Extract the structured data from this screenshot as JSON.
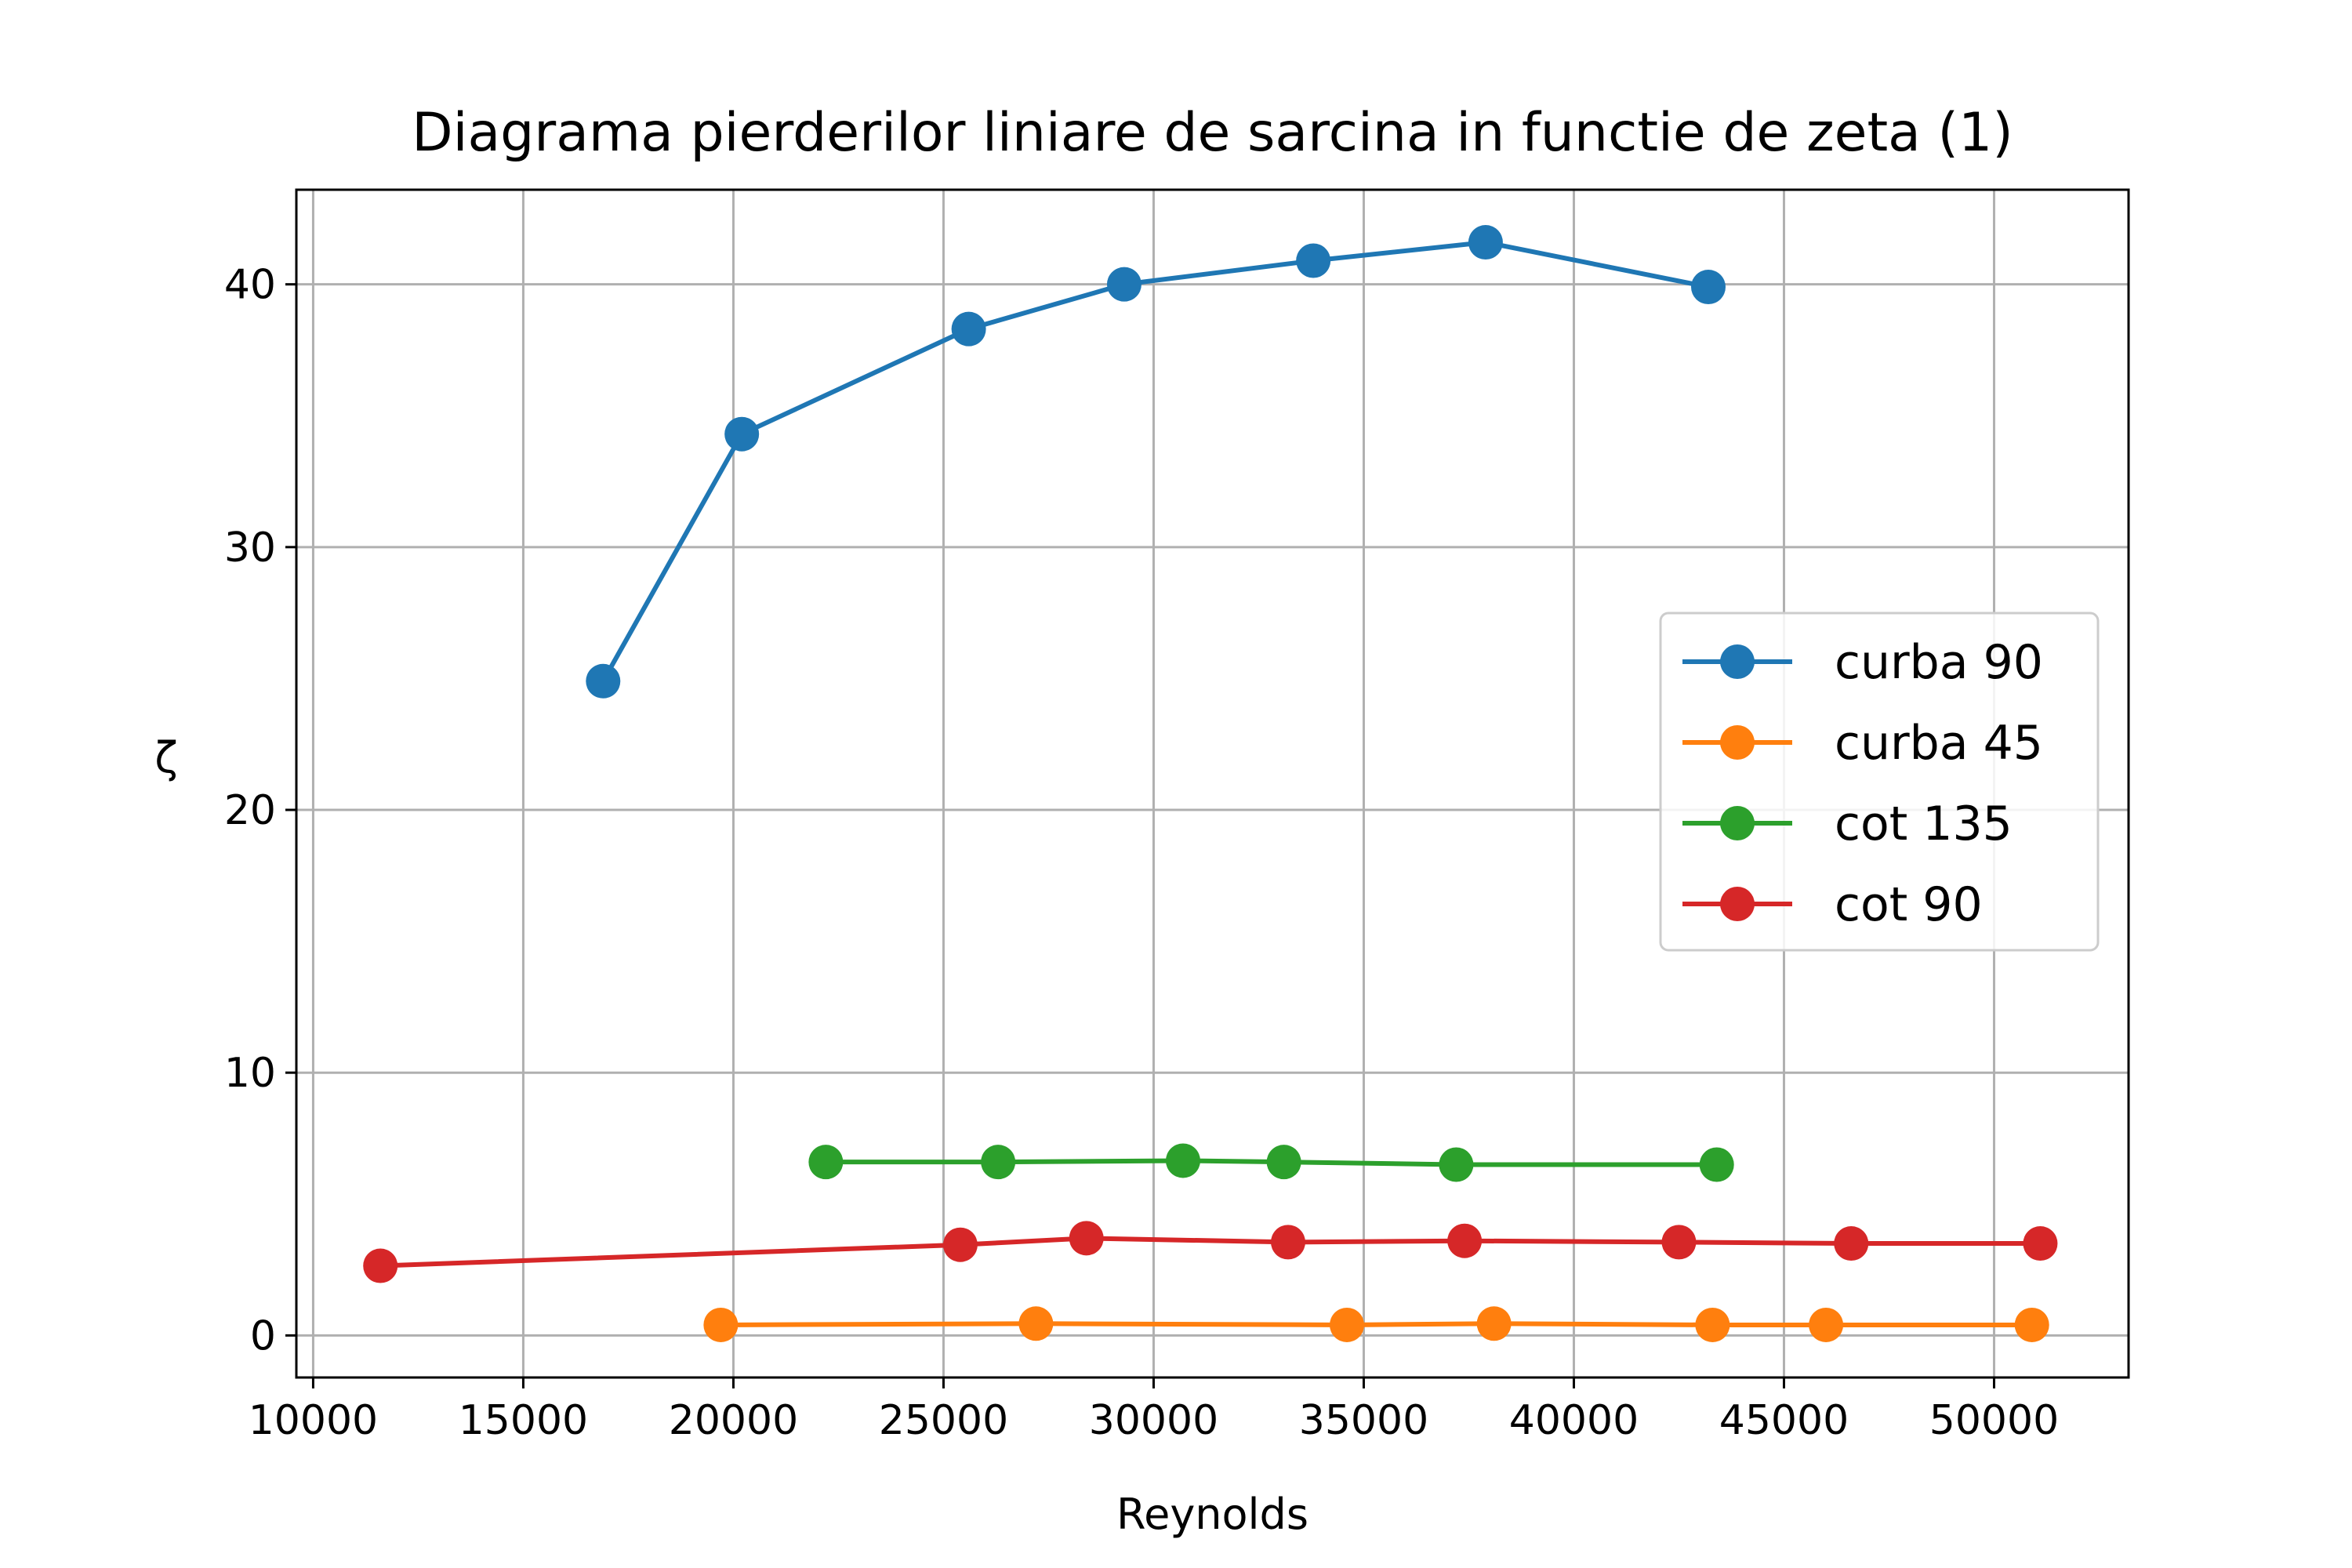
{
  "chart_data": {
    "type": "line",
    "title": "Diagrama pierderilor liniare de sarcina in functie de zeta (1)",
    "xlabel": "Reynolds",
    "ylabel": "ζ",
    "xlim": [
      9600,
      53200
    ],
    "ylim": [
      -1.6,
      43.6
    ],
    "xticks": [
      10000,
      15000,
      20000,
      25000,
      30000,
      35000,
      40000,
      45000,
      50000
    ],
    "yticks": [
      0,
      10,
      20,
      30,
      40
    ],
    "grid": true,
    "legend_position": "center-right",
    "series": [
      {
        "name": "curba 90",
        "color": "#1f77b4",
        "x": [
          16900,
          20200,
          25600,
          29300,
          33800,
          37900,
          43200
        ],
        "y": [
          24.9,
          34.3,
          38.3,
          40.0,
          40.9,
          41.6,
          39.9
        ]
      },
      {
        "name": "curba 45",
        "color": "#ff7f0e",
        "x": [
          19700,
          27200,
          34600,
          38100,
          43300,
          46000,
          50900
        ],
        "y": [
          0.4,
          0.45,
          0.4,
          0.45,
          0.4,
          0.4,
          0.4
        ]
      },
      {
        "name": "cot 135",
        "color": "#2ca02c",
        "x": [
          22200,
          26300,
          30700,
          33100,
          37200,
          43400
        ],
        "y": [
          6.6,
          6.6,
          6.65,
          6.6,
          6.5,
          6.5
        ]
      },
      {
        "name": "cot 90",
        "color": "#d62728",
        "x": [
          11600,
          25400,
          28400,
          33200,
          37400,
          42500,
          46600,
          51100
        ],
        "y": [
          2.65,
          3.45,
          3.7,
          3.55,
          3.6,
          3.55,
          3.5,
          3.5
        ]
      }
    ]
  }
}
